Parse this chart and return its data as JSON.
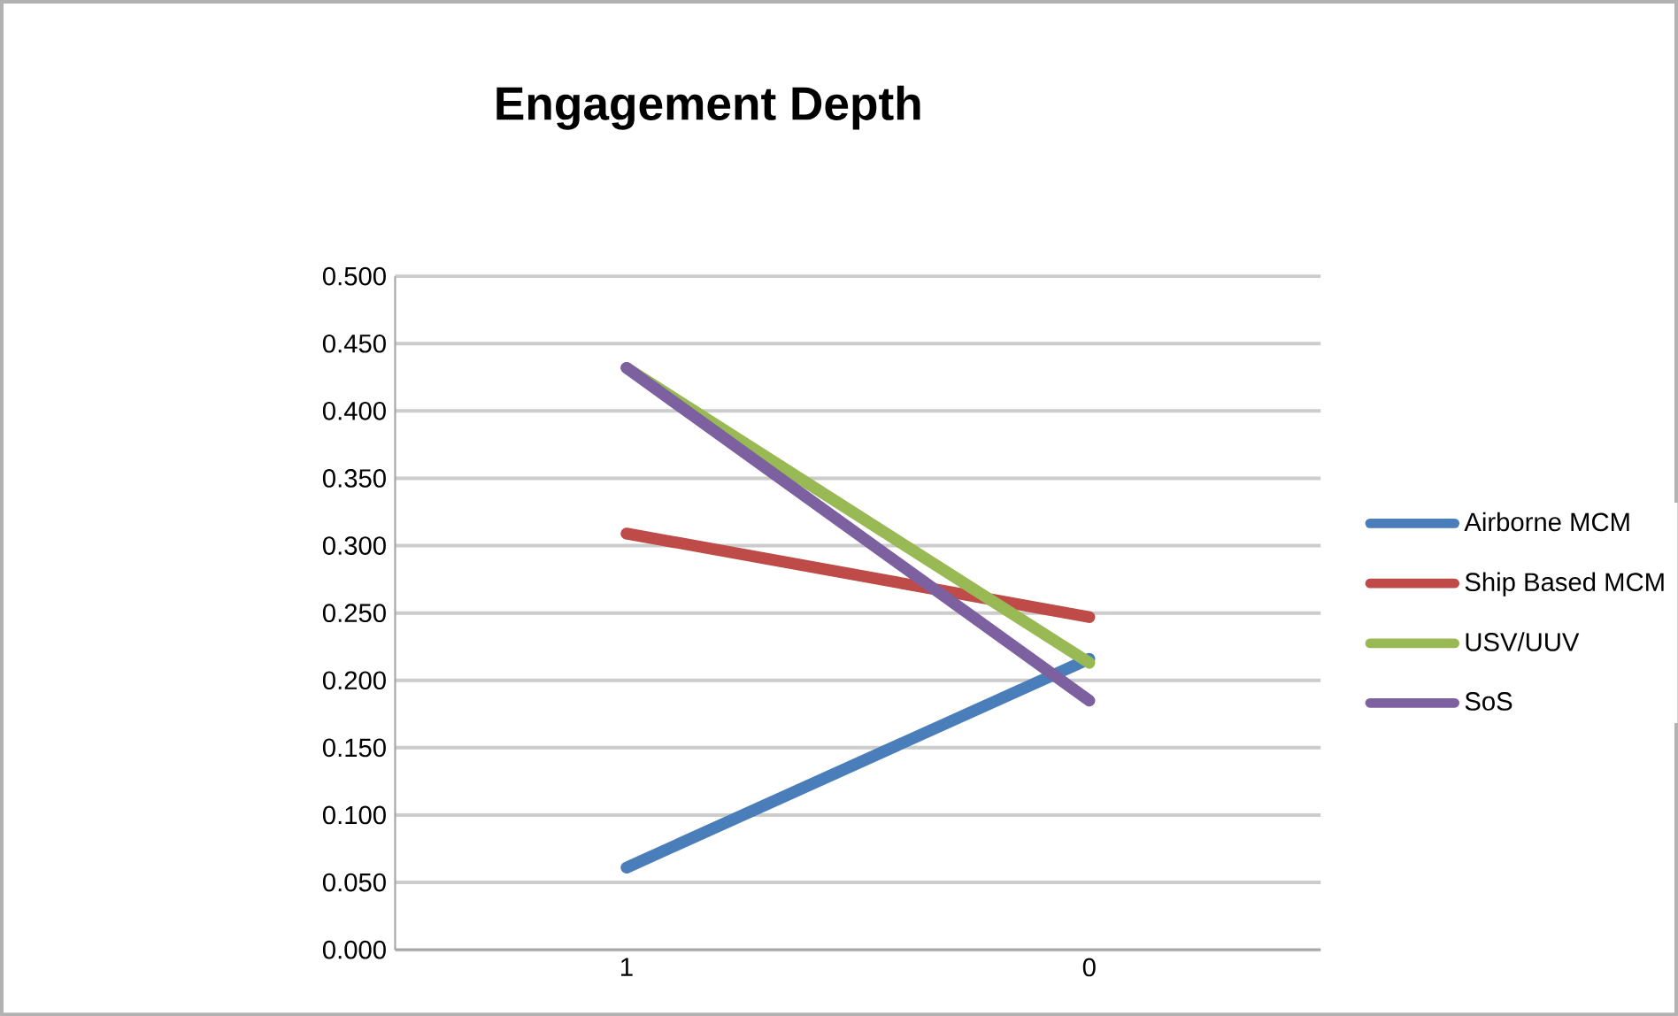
{
  "chart_data": {
    "type": "line",
    "title": "Engagement Depth",
    "categories": [
      "1",
      "0"
    ],
    "series": [
      {
        "name": "Airborne MCM",
        "color": "#4a7ebb",
        "values": [
          0.061,
          0.216
        ]
      },
      {
        "name": "Ship Based MCM",
        "color": "#be4b48",
        "values": [
          0.309,
          0.247
        ]
      },
      {
        "name": "USV/UUV",
        "color": "#98b954",
        "values": [
          0.432,
          0.213
        ]
      },
      {
        "name": "SoS",
        "color": "#7d60a0",
        "values": [
          0.432,
          0.185
        ]
      }
    ],
    "ylim": [
      0,
      0.5
    ],
    "yticks": [
      {
        "value": 0,
        "label": "0.000"
      },
      {
        "value": 0.05,
        "label": "0.050"
      },
      {
        "value": 0.1,
        "label": "0.100"
      },
      {
        "value": 0.15,
        "label": "0.150"
      },
      {
        "value": 0.2,
        "label": "0.200"
      },
      {
        "value": 0.25,
        "label": "0.250"
      },
      {
        "value": 0.3,
        "label": "0.300"
      },
      {
        "value": 0.35,
        "label": "0.350"
      },
      {
        "value": 0.4,
        "label": "0.400"
      },
      {
        "value": 0.45,
        "label": "0.450"
      },
      {
        "value": 0.5,
        "label": "0.500"
      }
    ],
    "grid": "y",
    "legend": "right",
    "marker": "none",
    "line_style": "solid"
  }
}
